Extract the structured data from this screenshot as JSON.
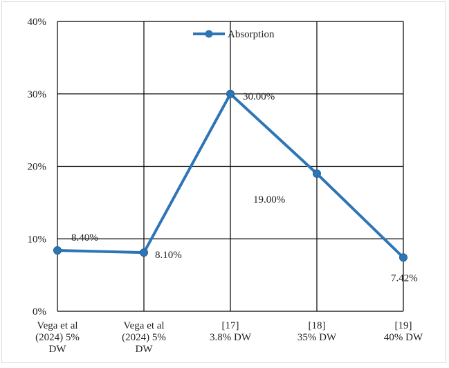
{
  "chart_data": {
    "type": "line",
    "categories": [
      [
        "Vega et al",
        "(2024) 5%",
        "DW"
      ],
      [
        "Vega et al",
        "(2024) 5%",
        "DW"
      ],
      [
        "[17]",
        "3.8% DW"
      ],
      [
        "[18]",
        "35% DW"
      ],
      [
        "[19]",
        "40% DW"
      ]
    ],
    "series": [
      {
        "name": "Absorption",
        "values": [
          8.4,
          8.1,
          30.0,
          19.0,
          7.42
        ],
        "labels": [
          "8.40%",
          "8.10%",
          "30.00%",
          "19.00%",
          "7.42%"
        ],
        "color": "#2e75b6"
      }
    ],
    "yticks": [
      "0%",
      "10%",
      "20%",
      "30%",
      "40%"
    ],
    "ylim": [
      0,
      40
    ],
    "grid": true,
    "legend": "top-center",
    "title": "",
    "xlabel": "",
    "ylabel": ""
  }
}
